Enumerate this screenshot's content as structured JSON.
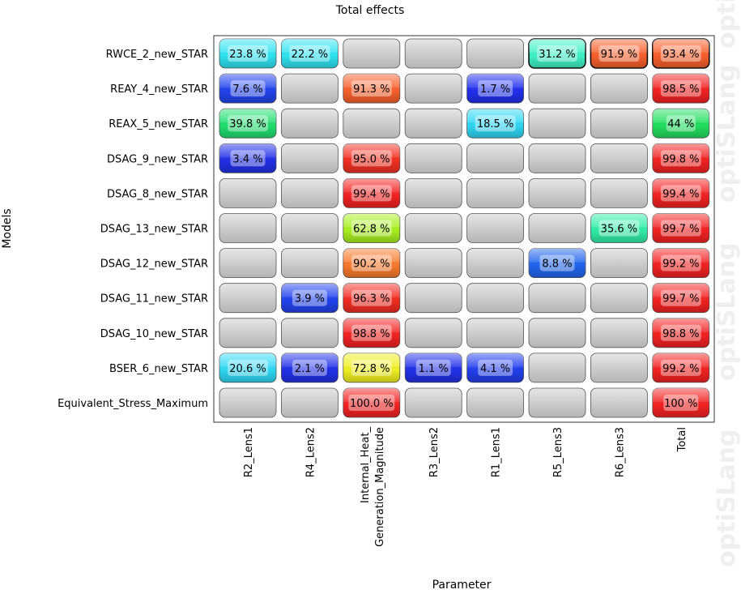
{
  "chart_data": {
    "type": "heatmap",
    "title": "Total effects",
    "xlabel": "Parameter",
    "ylabel": "Models",
    "columns": [
      "R2_Lens1",
      "R4_Lens2",
      "Internal_Heat_\nGeneration_Magnitude",
      "R3_Lens2",
      "R1_Lens1",
      "R5_Lens3",
      "R6_Lens3",
      "Total"
    ],
    "rows": [
      "RWCE_2_new_STAR",
      "REAY_4_new_STAR",
      "REAX_5_new_STAR",
      "DSAG_9_new_STAR",
      "DSAG_8_new_STAR",
      "DSAG_13_new_STAR",
      "DSAG_12_new_STAR",
      "DSAG_11_new_STAR",
      "DSAG_10_new_STAR",
      "BSER_6_new_STAR",
      "Equivalent_Stress_Maximum"
    ],
    "cells": [
      [
        "23.8 %",
        "22.2 %",
        "",
        "",
        "",
        "31.2 %",
        "91.9 %",
        "93.4 %"
      ],
      [
        "7.6 %",
        "",
        "91.3 %",
        "",
        "1.7 %",
        "",
        "",
        "98.5 %"
      ],
      [
        "39.8 %",
        "",
        "",
        "",
        "18.5 %",
        "",
        "",
        "44 %"
      ],
      [
        "3.4 %",
        "",
        "95.0 %",
        "",
        "",
        "",
        "",
        "99.8 %"
      ],
      [
        "",
        "",
        "99.4 %",
        "",
        "",
        "",
        "",
        "99.4 %"
      ],
      [
        "",
        "",
        "62.8 %",
        "",
        "",
        "",
        "35.6 %",
        "99.7 %"
      ],
      [
        "",
        "",
        "90.2 %",
        "",
        "",
        "8.8 %",
        "",
        "99.2 %"
      ],
      [
        "",
        "3.9 %",
        "96.3 %",
        "",
        "",
        "",
        "",
        "99.7 %"
      ],
      [
        "",
        "",
        "98.8 %",
        "",
        "",
        "",
        "",
        "98.8 %"
      ],
      [
        "20.6 %",
        "2.1 %",
        "72.8 %",
        "1.1 %",
        "4.1 %",
        "",
        "",
        "99.2 %"
      ],
      [
        "",
        "",
        "100.0 %",
        "",
        "",
        "",
        "",
        "100 %"
      ]
    ],
    "cell_colors": [
      [
        "#2fe4f2",
        "#2fe4f2",
        "",
        "",
        "",
        "#3ff2c6",
        "#f8602c",
        "#f8602c"
      ],
      [
        "#2244ee",
        "",
        "#f8602c",
        "",
        "#2230ee",
        "",
        "",
        "#f42222"
      ],
      [
        "#20e070",
        "",
        "",
        "",
        "#2fd8f4",
        "",
        "",
        "#22e060"
      ],
      [
        "#2230e8",
        "",
        "#f43022",
        "",
        "",
        "",
        "",
        "#f42222"
      ],
      [
        "",
        "",
        "#f42222",
        "",
        "",
        "",
        "",
        "#f42222"
      ],
      [
        "",
        "",
        "#a8f020",
        "",
        "",
        "",
        "#30eea8",
        "#f42222"
      ],
      [
        "",
        "",
        "#f87a2c",
        "",
        "",
        "#2266ee",
        "",
        "#f42222"
      ],
      [
        "",
        "#2244ee",
        "#f42c22",
        "",
        "",
        "",
        "",
        "#f42222"
      ],
      [
        "",
        "",
        "#f42222",
        "",
        "",
        "",
        "",
        "#f42222"
      ],
      [
        "#2fd8f4",
        "#2230e8",
        "#f0f020",
        "#2230e8",
        "#2240ee",
        "",
        "",
        "#f42222"
      ],
      [
        "",
        "",
        "#f42222",
        "",
        "",
        "",
        "",
        "#f42222"
      ]
    ],
    "highlight_border_cells": [
      [
        0,
        5
      ],
      [
        0,
        6
      ],
      [
        0,
        7
      ]
    ],
    "empty_cell_color": "#c8c8c8"
  },
  "watermark": {
    "text": "optiSLang"
  }
}
